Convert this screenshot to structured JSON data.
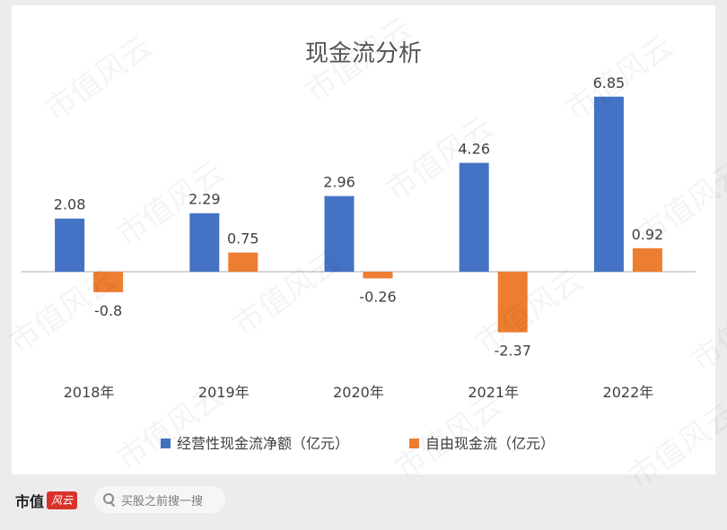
{
  "chart_data": {
    "type": "bar",
    "title": "现金流分析",
    "categories": [
      "2018年",
      "2019年",
      "2020年",
      "2021年",
      "2022年"
    ],
    "series": [
      {
        "name": "经营性现金流净额（亿元）",
        "values": [
          2.08,
          2.29,
          2.96,
          4.26,
          6.85
        ],
        "color": "#4472c4"
      },
      {
        "name": "自由现金流（亿元）",
        "values": [
          -0.8,
          0.75,
          -0.26,
          -2.37,
          0.92
        ],
        "color": "#ed7d31"
      }
    ],
    "value_labels": [
      [
        "2.08",
        "2.29",
        "2.96",
        "4.26",
        "6.85"
      ],
      [
        "-0.8",
        "0.75",
        "-0.26",
        "-2.37",
        "0.92"
      ]
    ],
    "ylim": [
      -2.37,
      6.85
    ],
    "grid": false,
    "legend": "bottom"
  },
  "watermark": "市值风云",
  "footer": {
    "brand": "市值",
    "brand_badge": "风云",
    "search_placeholder": "买股之前搜一搜",
    "search_icon": "search-icon"
  }
}
